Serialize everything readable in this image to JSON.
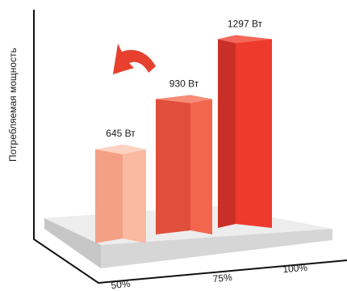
{
  "chart_data": {
    "type": "bar",
    "title": "",
    "xlabel": "",
    "ylabel": "Потребляемая мощность",
    "categories": [
      "50%",
      "75%",
      "100%"
    ],
    "values": [
      645,
      930,
      1297
    ],
    "value_labels": [
      "645 Вт",
      "930 Вт",
      "1297 Вт"
    ],
    "unit": "Вт",
    "ylim": [
      0,
      1350
    ],
    "grid": false,
    "legend": "none",
    "annotation_icon": "curved-arrow-left-icon",
    "colors": {
      "bars": [
        {
          "front": "#F9BAA1",
          "side": "#F4A086",
          "top": "#FCD2C0"
        },
        {
          "front": "#F2664E",
          "side": "#E04F3B",
          "top": "#F68C76"
        },
        {
          "front": "#EE3A2C",
          "side": "#C92F27",
          "top": "#F2675A"
        }
      ],
      "arrow": "#E8402F",
      "platform_top": "#EDEDED",
      "platform_front": "#D6D6D6",
      "platform_side": "#C6C6C6",
      "axis": "#111111"
    }
  }
}
